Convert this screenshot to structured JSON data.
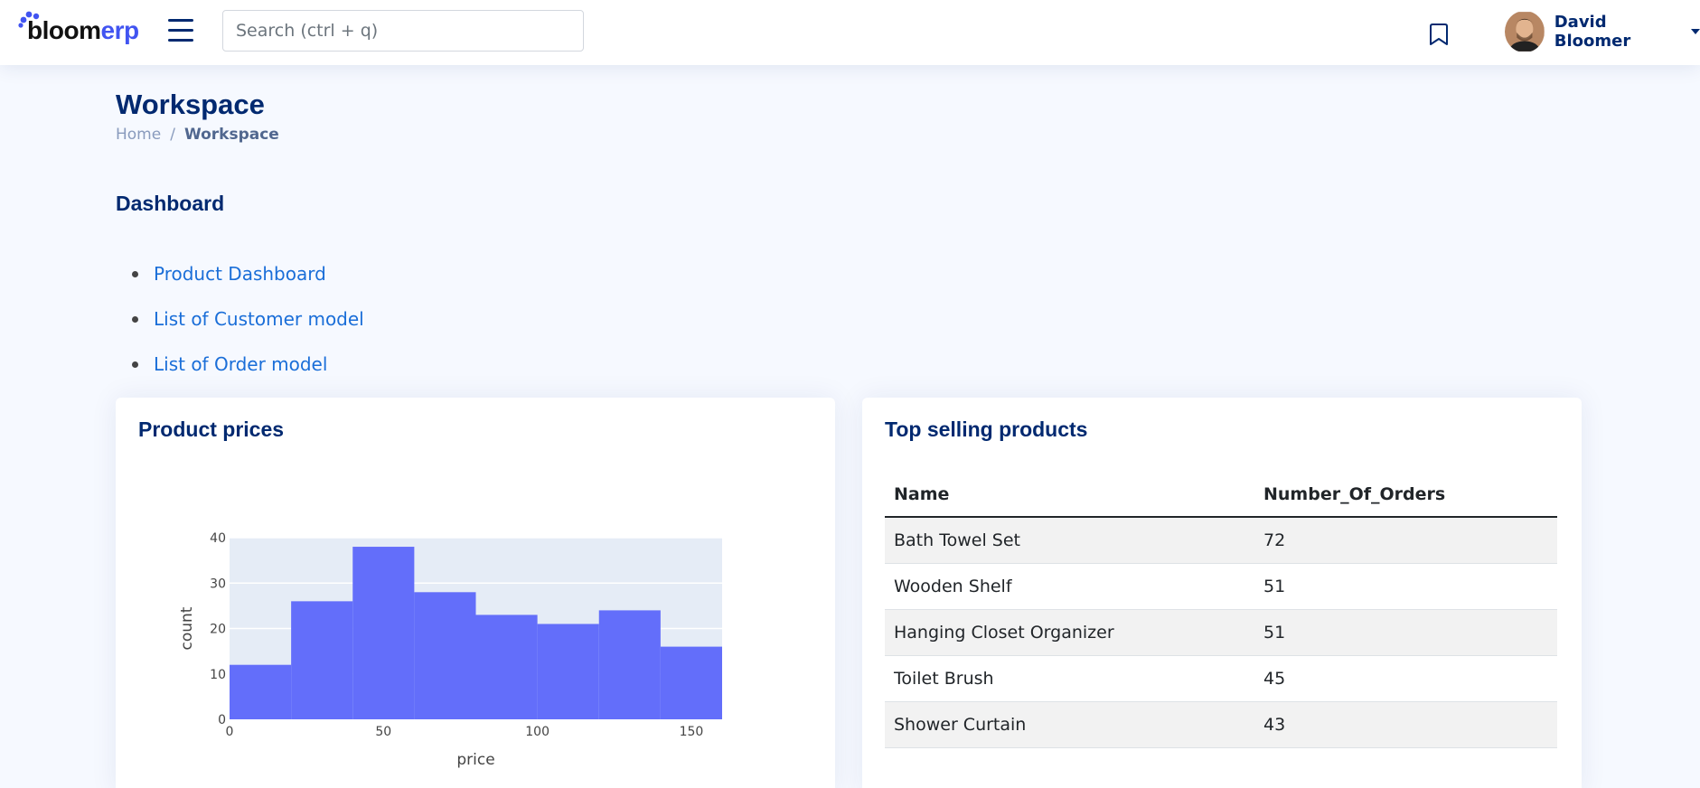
{
  "header": {
    "logo": {
      "part1": "bloom",
      "part2": "erp"
    },
    "search": {
      "placeholder": "Search (ctrl + q)"
    },
    "user": {
      "name": "David Bloomer"
    },
    "icons": {
      "menu": "hamburger-icon",
      "bookmark": "bookmark-icon",
      "caret": "caret-down-icon"
    }
  },
  "page": {
    "title": "Workspace",
    "breadcrumb": {
      "home": "Home",
      "separator": "/",
      "current": "Workspace"
    }
  },
  "dashboard": {
    "title": "Dashboard",
    "links": [
      {
        "label": "Product Dashboard"
      },
      {
        "label": "List of Customer model"
      },
      {
        "label": "List of Order model"
      }
    ]
  },
  "product_prices": {
    "title": "Product prices"
  },
  "top_selling": {
    "title": "Top selling products",
    "columns": [
      "Name",
      "Number_Of_Orders"
    ],
    "rows": [
      {
        "name": "Bath Towel Set",
        "orders": "72"
      },
      {
        "name": "Wooden Shelf",
        "orders": "51"
      },
      {
        "name": "Hanging Closet Organizer",
        "orders": "51"
      },
      {
        "name": "Toilet Brush",
        "orders": "45"
      },
      {
        "name": "Shower Curtain",
        "orders": "43"
      }
    ]
  },
  "colors": {
    "bar": "#636efa",
    "plot_bg": "#e5ecf6",
    "accent": "#4154f1",
    "title": "#012970"
  },
  "chart_data": {
    "type": "bar",
    "title": "",
    "xlabel": "price",
    "ylabel": "count",
    "bin_edges": [
      0,
      20,
      40,
      60,
      80,
      100,
      120,
      140,
      160
    ],
    "values": [
      12,
      26,
      38,
      28,
      23,
      21,
      24,
      16
    ],
    "x_ticks": [
      0,
      50,
      100,
      150
    ],
    "y_ticks": [
      0,
      10,
      20,
      30,
      40
    ],
    "xlim": [
      0,
      160
    ],
    "ylim": [
      0,
      40
    ],
    "grid": true
  }
}
